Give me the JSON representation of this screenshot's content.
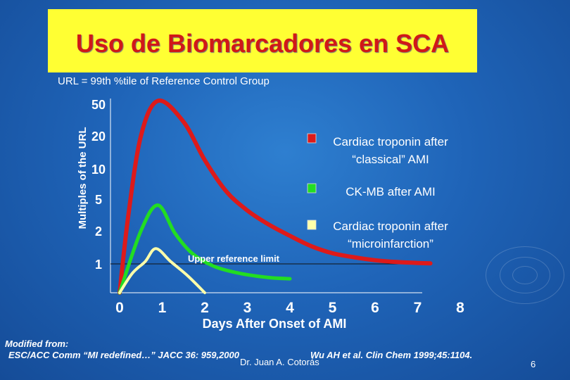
{
  "slide": {
    "title": "Uso de Biomarcadores en SCA",
    "subtitle": "URL = 99th %tile of Reference Control Group",
    "footnote_modified": "Modified from:",
    "footnote_ref1": "ESC/ACC Comm “MI redefined…” JACC 36: 959,2000",
    "footnote_ref2": "Wu AH et al. Clin Chem 1999;45:1104.",
    "presenter": "Dr. Juan A. Cotorás",
    "page_number": "6"
  },
  "colors": {
    "title_bg": "#ffff33",
    "title_text": "#d01818",
    "troponin_classical": "#dd1a1a",
    "ckmb": "#22dd22",
    "troponin_micro": "#ffffaa"
  },
  "chart_data": {
    "type": "line",
    "title": "Uso de Biomarcadores en SCA",
    "xlabel": "Days After Onset of AMI",
    "ylabel": "Multiples of the URL",
    "y_scale": "log (categorical ticks)",
    "y_ticks": [
      "1",
      "2",
      "5",
      "10",
      "20",
      "50"
    ],
    "x_ticks": [
      "0",
      "1",
      "2",
      "3",
      "4",
      "5",
      "6",
      "7",
      "8"
    ],
    "xlim": [
      0,
      8
    ],
    "reference_line": {
      "label": "Upper reference limit",
      "y": 1
    },
    "series": [
      {
        "name": "Cardiac troponin after “classical” AMI",
        "color": "#dd1a1a",
        "x": [
          0,
          0.2,
          0.5,
          0.9,
          1.5,
          2.0,
          2.5,
          3.0,
          3.5,
          4.0,
          4.5,
          5.0,
          5.5,
          6.0,
          6.5,
          7.0,
          7.3
        ],
        "y": [
          0.5,
          3,
          20,
          55,
          30,
          12,
          6,
          3.6,
          2.4,
          1.8,
          1.45,
          1.25,
          1.15,
          1.08,
          1.04,
          1.02,
          1.01
        ]
      },
      {
        "name": "CK-MB after AMI",
        "color": "#22dd22",
        "x": [
          0,
          0.5,
          0.9,
          1.3,
          1.7,
          2.2,
          2.8,
          3.5,
          4.0
        ],
        "y": [
          0.5,
          2,
          4.2,
          1.9,
          1.25,
          0.95,
          0.8,
          0.72,
          0.7
        ]
      },
      {
        "name": "Cardiac troponin after “microinfarction”",
        "color": "#ffffaa",
        "x": [
          0,
          0.3,
          0.6,
          0.85,
          1.2,
          1.6,
          2.0
        ],
        "y": [
          0.5,
          0.8,
          1.05,
          1.38,
          1.05,
          0.75,
          0.5
        ]
      }
    ],
    "legend": [
      {
        "label": "Cardiac troponin after “classical” AMI",
        "color": "#dd1a1a"
      },
      {
        "label": "CK-MB after AMI",
        "color": "#22dd22"
      },
      {
        "label": "Cardiac troponin after “microinfarction”",
        "color": "#ffffaa"
      }
    ]
  }
}
